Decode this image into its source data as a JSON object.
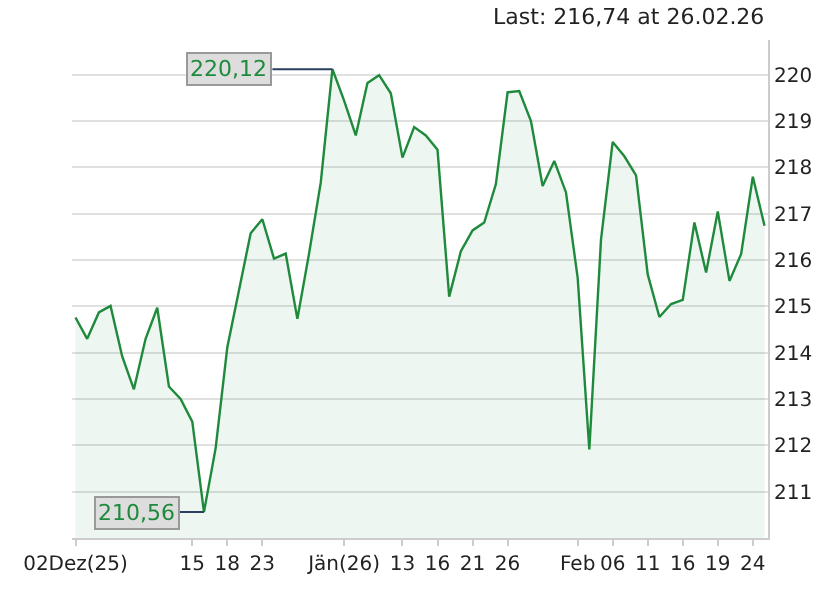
{
  "chart_data": {
    "type": "area",
    "title": "Last: 216,74 at 26.02.26",
    "categories": [
      "02Dez(25)",
      null,
      null,
      null,
      null,
      null,
      null,
      null,
      null,
      null,
      "15",
      null,
      null,
      "18",
      null,
      null,
      "23",
      null,
      null,
      null,
      null,
      null,
      null,
      "Jän(26)",
      null,
      null,
      null,
      null,
      "13",
      null,
      null,
      "16",
      null,
      null,
      "21",
      null,
      null,
      "26",
      null,
      null,
      null,
      null,
      null,
      "Feb",
      null,
      null,
      "06",
      null,
      null,
      "11",
      null,
      null,
      "16",
      null,
      null,
      "19",
      null,
      null,
      "24",
      null
    ],
    "series": [
      {
        "color": "#1f8a3c",
        "values": [
          214.76,
          214.3,
          214.87,
          215.01,
          213.92,
          213.21,
          214.3,
          214.97,
          213.27,
          213.0,
          212.51,
          210.56,
          211.94,
          214.12,
          215.35,
          216.58,
          216.88,
          216.03,
          216.14,
          214.73,
          216.14,
          217.67,
          220.12,
          219.44,
          218.69,
          219.82,
          219.99,
          219.6,
          218.21,
          218.87,
          218.69,
          218.38,
          215.21,
          216.19,
          216.64,
          216.81,
          217.64,
          219.62,
          219.65,
          219.0,
          217.6,
          218.14,
          217.46,
          215.62,
          211.91,
          216.44,
          218.55,
          218.24,
          217.83,
          215.69,
          214.77,
          215.05,
          215.14,
          216.81,
          215.73,
          217.05,
          215.55,
          216.13,
          217.8,
          216.74
        ]
      }
    ],
    "ylim": [
      210,
      220.75
    ],
    "yticks": [
      211,
      212,
      213,
      214,
      215,
      216,
      217,
      218,
      219,
      220
    ],
    "grid": "y",
    "annotations": [
      {
        "text": "220,12",
        "y": 220.12
      },
      {
        "text": "210,56",
        "y": 210.56
      }
    ]
  }
}
